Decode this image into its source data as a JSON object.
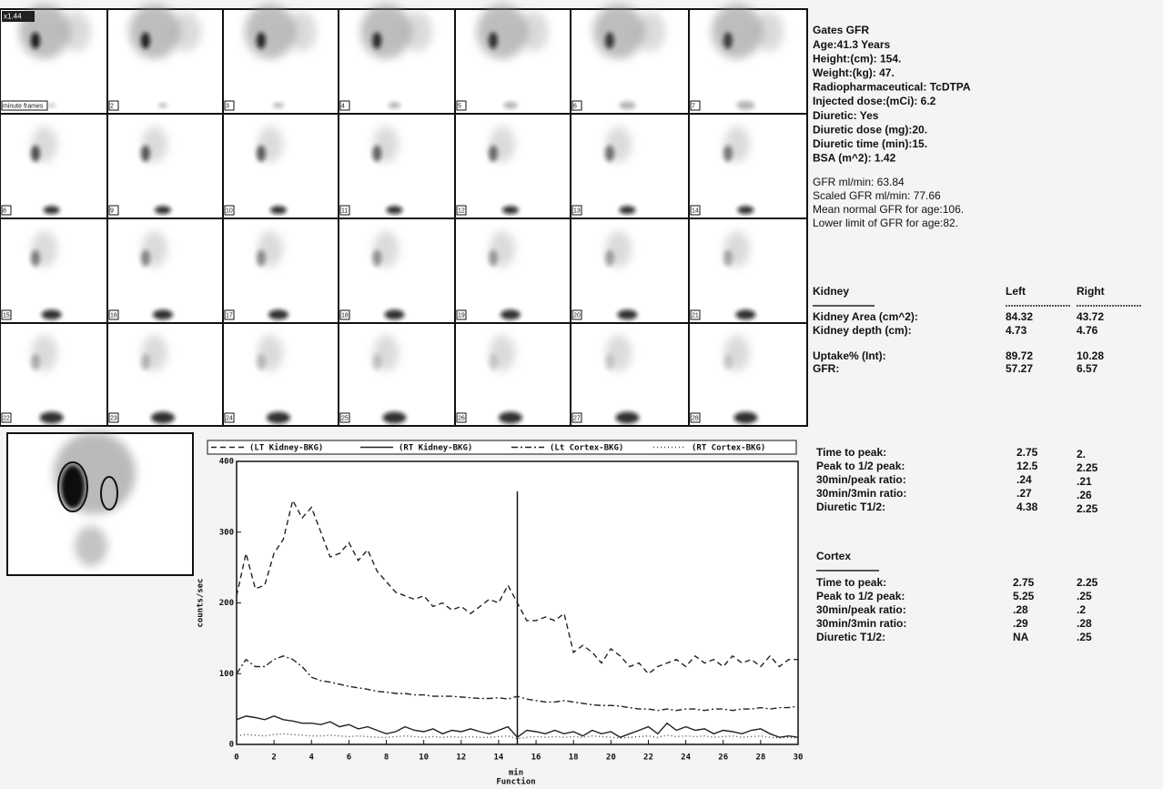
{
  "frames": {
    "scale_label": "x1.44",
    "labels": [
      "minute frames",
      "2",
      "3",
      "4",
      "5",
      "6",
      "7",
      "8",
      "9",
      "10",
      "11",
      "12",
      "13",
      "14",
      "15",
      "16",
      "17",
      "18",
      "19",
      "20",
      "21",
      "22",
      "23",
      "24",
      "25",
      "26",
      "27",
      "28"
    ]
  },
  "info": {
    "lines": [
      "Gates GFR",
      "Age:41.3 Years",
      "Height:(cm): 154.",
      "Weight:(kg): 47.",
      "Radiopharmaceutical: TcDTPA",
      "Injected dose:(mCi): 6.2",
      "Diuretic: Yes",
      "Diuretic dose (mg):20.",
      "Diuretic time (min):15.",
      "BSA (m^2): 1.42"
    ]
  },
  "gfr": {
    "lines": [
      "GFR ml/min: 63.84",
      "Scaled GFR ml/min: 77.66",
      "Mean normal GFR for age:106.",
      "Lower limit of GFR for age:82."
    ]
  },
  "kidney_table": {
    "header": [
      "Kidney",
      "Left",
      "Right"
    ],
    "rows": [
      [
        "Kidney Area (cm^2):",
        "84.32",
        "43.72"
      ],
      [
        "Kidney depth (cm):",
        "4.73",
        "4.76"
      ],
      [
        "Uptake% (Int):",
        "89.72",
        "10.28"
      ],
      [
        "GFR:",
        "57.27",
        "6.57"
      ]
    ]
  },
  "timing_table": {
    "rows": [
      [
        "Time to peak:",
        "2.75",
        "2."
      ],
      [
        "Peak to 1/2 peak:",
        "12.5",
        "2.25"
      ],
      [
        "30min/peak ratio:",
        ".24",
        ".21"
      ],
      [
        "30min/3min ratio:",
        ".27",
        ".26"
      ],
      [
        "Diuretic T1/2:",
        "4.38",
        "2.25"
      ]
    ]
  },
  "cortex_table": {
    "title": "Cortex",
    "rows": [
      [
        "Time to peak:",
        "2.75",
        "2.25"
      ],
      [
        "Peak to 1/2 peak:",
        "5.25",
        ".25"
      ],
      [
        "30min/peak ratio:",
        ".28",
        ".2"
      ],
      [
        "30min/3min ratio:",
        ".29",
        ".28"
      ],
      [
        "Diuretic T1/2:",
        "NA",
        ".25"
      ]
    ]
  },
  "chart_data": {
    "type": "line",
    "x_label": "min",
    "x_sublabel": "Function",
    "y_label": "counts/sec",
    "xlim": [
      0,
      30
    ],
    "ylim": [
      0,
      400
    ],
    "xticks": [
      0,
      2,
      4,
      6,
      8,
      10,
      12,
      14,
      16,
      18,
      20,
      22,
      24,
      26,
      28,
      30
    ],
    "yticks": [
      0,
      100,
      200,
      300,
      400
    ],
    "marker_x": 15,
    "x": [
      0,
      0.5,
      1,
      1.5,
      2,
      2.5,
      3,
      3.5,
      4,
      4.5,
      5,
      5.5,
      6,
      6.5,
      7,
      7.5,
      8,
      8.5,
      9,
      9.5,
      10,
      10.5,
      11,
      11.5,
      12,
      12.5,
      13,
      13.5,
      14,
      14.5,
      15,
      15.5,
      16,
      16.5,
      17,
      17.5,
      18,
      18.5,
      19,
      19.5,
      20,
      20.5,
      21,
      21.5,
      22,
      22.5,
      23,
      23.5,
      24,
      24.5,
      25,
      25.5,
      26,
      26.5,
      27,
      27.5,
      28,
      28.5,
      29,
      29.5,
      30
    ],
    "series": [
      {
        "name": "(LT Kidney-BKG)",
        "color": "#222222",
        "dash": "6 4",
        "values": [
          210,
          270,
          220,
          225,
          270,
          290,
          345,
          320,
          335,
          300,
          265,
          270,
          285,
          260,
          275,
          245,
          230,
          215,
          210,
          205,
          210,
          195,
          200,
          190,
          195,
          185,
          195,
          205,
          200,
          225,
          200,
          175,
          175,
          180,
          175,
          185,
          130,
          140,
          130,
          115,
          135,
          125,
          110,
          115,
          100,
          110,
          115,
          120,
          110,
          125,
          115,
          120,
          110,
          125,
          115,
          120,
          110,
          125,
          110,
          120,
          120
        ]
      },
      {
        "name": "(RT Kidney-BKG)",
        "color": "#222222",
        "dash": "",
        "values": [
          35,
          40,
          38,
          35,
          40,
          35,
          33,
          30,
          30,
          28,
          32,
          25,
          28,
          22,
          25,
          20,
          15,
          18,
          25,
          20,
          18,
          22,
          15,
          20,
          18,
          22,
          18,
          15,
          20,
          25,
          10,
          20,
          18,
          15,
          20,
          15,
          18,
          12,
          20,
          15,
          18,
          10,
          15,
          20,
          25,
          15,
          30,
          20,
          25,
          20,
          22,
          15,
          20,
          18,
          15,
          20,
          22,
          15,
          10,
          12,
          10
        ]
      },
      {
        "name": "(Lt Cortex-BKG)",
        "color": "#222222",
        "dash": "7 3 2 3",
        "values": [
          100,
          120,
          110,
          110,
          120,
          125,
          120,
          110,
          95,
          90,
          88,
          85,
          82,
          80,
          78,
          75,
          74,
          72,
          72,
          70,
          70,
          68,
          68,
          68,
          67,
          66,
          65,
          65,
          66,
          64,
          68,
          64,
          62,
          60,
          60,
          62,
          60,
          58,
          56,
          55,
          55,
          54,
          52,
          50,
          50,
          48,
          50,
          48,
          50,
          50,
          48,
          50,
          50,
          48,
          50,
          50,
          52,
          50,
          52,
          52,
          54
        ]
      },
      {
        "name": "(RT Cortex-BKG)",
        "color": "#444444",
        "dash": "1 3",
        "values": [
          12,
          14,
          13,
          12,
          14,
          15,
          14,
          13,
          12,
          12,
          13,
          12,
          11,
          12,
          11,
          10,
          10,
          11,
          12,
          11,
          10,
          11,
          10,
          11,
          10,
          11,
          10,
          10,
          11,
          12,
          8,
          10,
          11,
          10,
          11,
          10,
          11,
          10,
          12,
          11,
          10,
          9,
          10,
          11,
          12,
          10,
          13,
          11,
          12,
          11,
          12,
          10,
          11,
          12,
          10,
          11,
          12,
          10,
          9,
          10,
          9
        ]
      }
    ]
  }
}
